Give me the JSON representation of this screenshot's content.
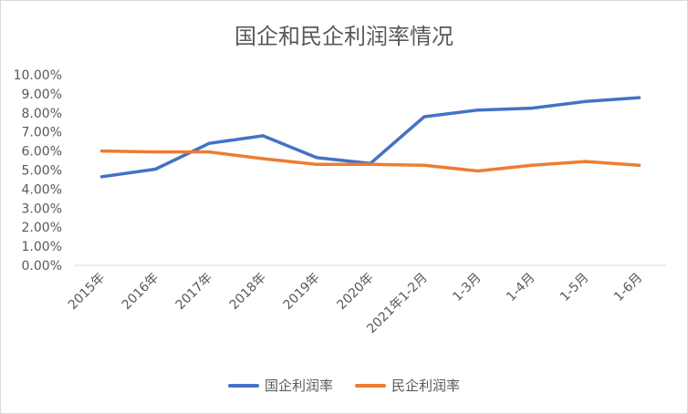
{
  "chart_data": {
    "type": "line",
    "title": "国企和民企利润率情况",
    "categories": [
      "2015年",
      "2016年",
      "2017年",
      "2018年",
      "2019年",
      "2020年",
      "2021年1-2月",
      "1-3月",
      "1-4月",
      "1-5月",
      "1-6月"
    ],
    "y_tick_labels": [
      "0.00%",
      "1.00%",
      "2.00%",
      "3.00%",
      "4.00%",
      "5.00%",
      "6.00%",
      "7.00%",
      "8.00%",
      "9.00%",
      "10.00%"
    ],
    "ylim": [
      0,
      10
    ],
    "grid": false,
    "legend_position": "bottom",
    "series": [
      {
        "name": "国企利润率",
        "color": "#4472c4",
        "values": [
          4.65,
          5.05,
          6.4,
          6.8,
          5.65,
          5.35,
          7.8,
          8.15,
          8.25,
          8.6,
          8.8
        ]
      },
      {
        "name": "民企利润率",
        "color": "#ed7d31",
        "values": [
          6.0,
          5.95,
          5.95,
          5.6,
          5.3,
          5.3,
          5.25,
          4.95,
          5.25,
          5.45,
          5.25
        ]
      }
    ]
  }
}
